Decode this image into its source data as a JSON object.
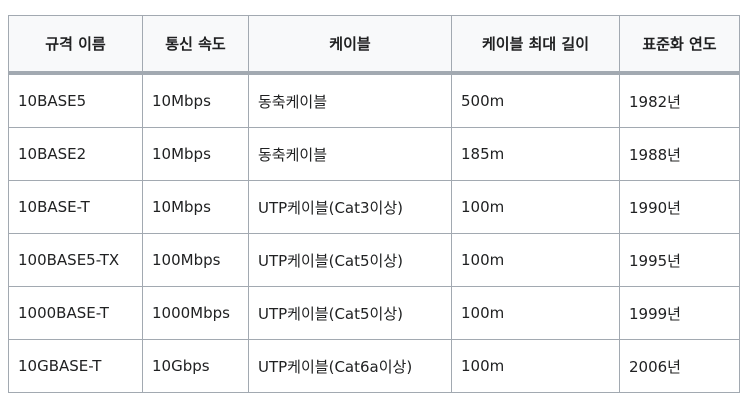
{
  "table": {
    "headers": [
      "규격 이름",
      "통신 속도",
      "케이블",
      "케이블 최대 길이",
      "표준화 연도"
    ],
    "rows": [
      [
        "10BASE5",
        "10Mbps",
        "동축케이블",
        "500m",
        "1982년"
      ],
      [
        "10BASE2",
        "10Mbps",
        "동축케이블",
        "185m",
        "1988년"
      ],
      [
        "10BASE-T",
        "10Mbps",
        "UTP케이블(Cat3이상)",
        "100m",
        "1990년"
      ],
      [
        "100BASE5-TX",
        "100Mbps",
        "UTP케이블(Cat5이상)",
        "100m",
        "1995년"
      ],
      [
        "1000BASE-T",
        "1000Mbps",
        "UTP케이블(Cat5이상)",
        "100m",
        "1999년"
      ],
      [
        "10GBASE-T",
        "10Gbps",
        "UTP케이블(Cat6a이상)",
        "100m",
        "2006년"
      ]
    ]
  }
}
